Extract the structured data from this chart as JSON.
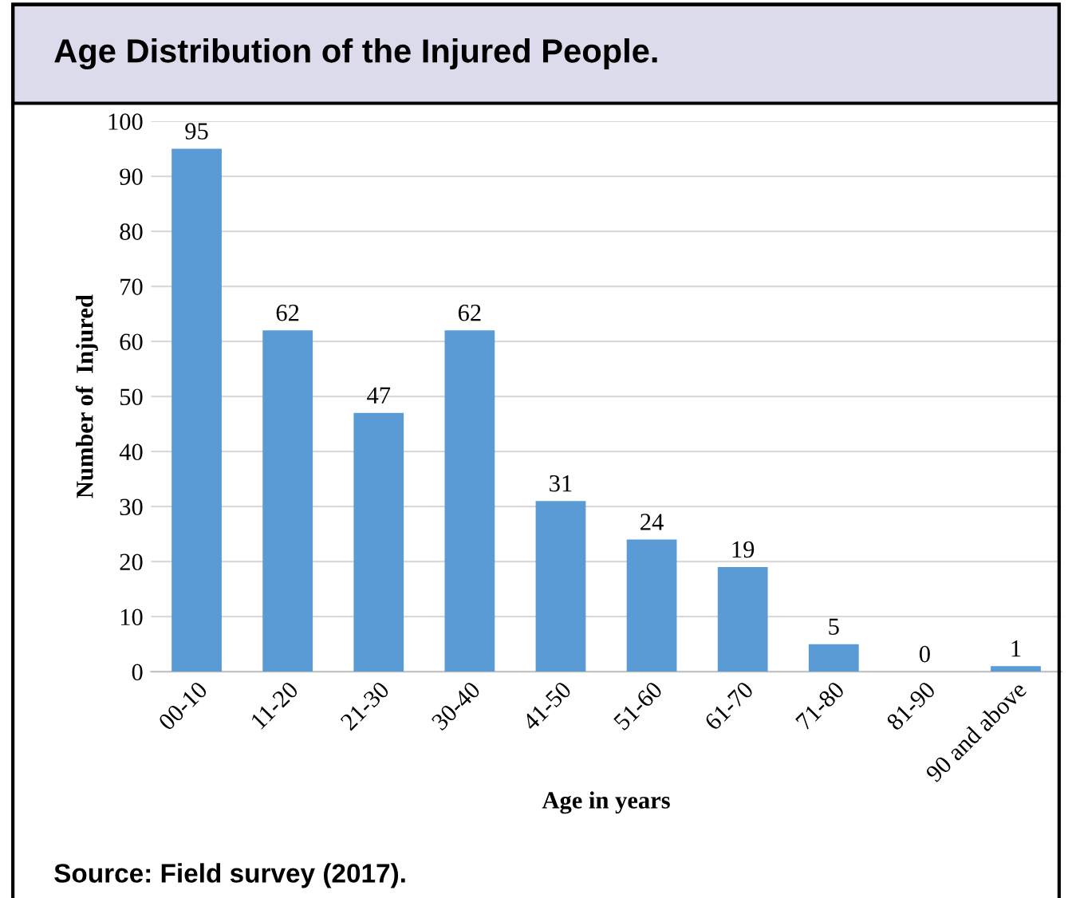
{
  "chart_data": {
    "type": "bar",
    "title": "Age Distribution of the Injured People.",
    "xlabel": "Age in years",
    "ylabel": "Number of  Injured",
    "categories": [
      "00-10",
      "11-20",
      "21-30",
      "30-40",
      "41-50",
      "51-60",
      "61-70",
      "71-80",
      "81-90",
      "90 and above"
    ],
    "values": [
      95,
      62,
      47,
      62,
      31,
      24,
      19,
      5,
      0,
      1
    ],
    "color": "#5b9bd5",
    "ylim": [
      0,
      100
    ],
    "yticks": [
      0,
      10,
      20,
      30,
      40,
      50,
      60,
      70,
      80,
      90,
      100
    ],
    "grid": "y",
    "data_labels": true,
    "annotations": [
      "Source: Field survey (2017)."
    ]
  }
}
